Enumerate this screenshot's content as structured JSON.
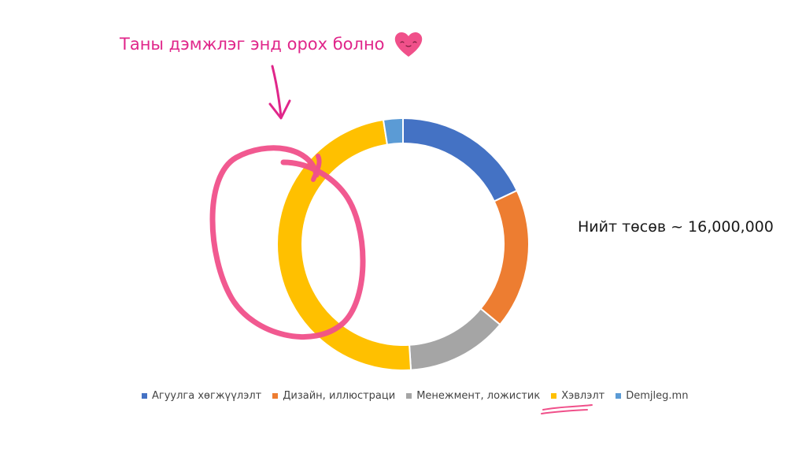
{
  "annotation": {
    "text": "Таны дэмжлэг энд орох болно"
  },
  "total": {
    "text": "Нийт төсөв ~ 16,000,000"
  },
  "chart_data": {
    "type": "donut",
    "title": "",
    "series": [
      {
        "name": "Агуулга хөгжүүлэлт",
        "value": 18,
        "color": "#4472C4"
      },
      {
        "name": "Дизайн, иллюстраци",
        "value": 18,
        "color": "#ED7D31"
      },
      {
        "name": "Менежмент, ложистик",
        "value": 13,
        "color": "#A5A5A5"
      },
      {
        "name": "Хэвлэлт",
        "value": 48.5,
        "color": "#FFC000"
      },
      {
        "name": "Demjleg.mn",
        "value": 2.5,
        "color": "#5B9BD5"
      }
    ],
    "legend": "bottom",
    "highlighted_segment": "Хэвлэлт"
  },
  "colors": {
    "accent": "#f0508a",
    "annotation_text": "#e0268a"
  }
}
